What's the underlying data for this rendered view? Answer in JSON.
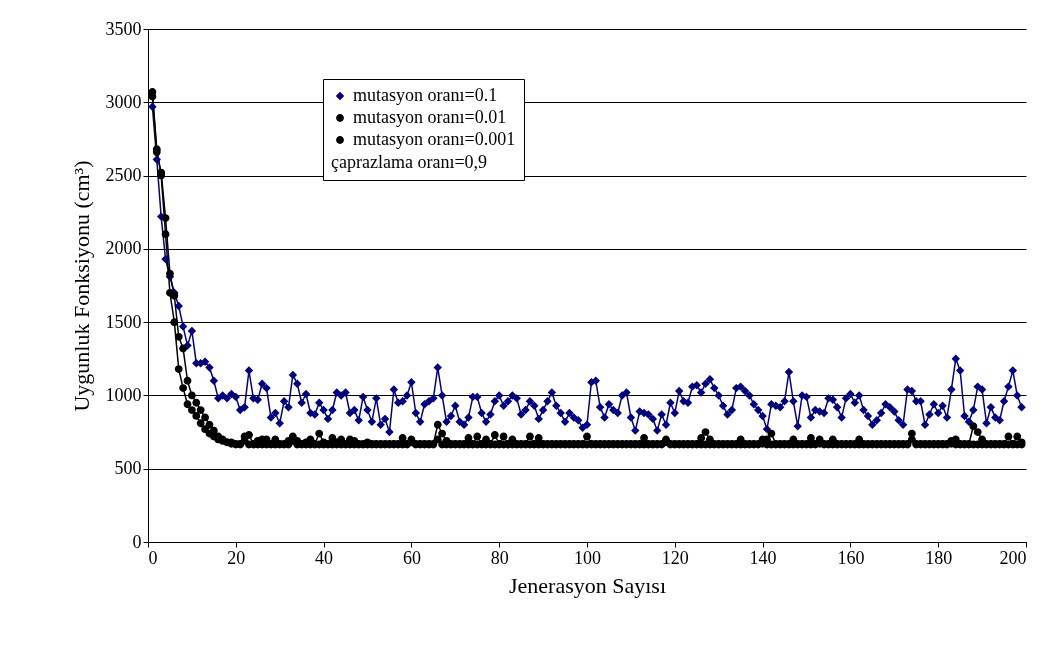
{
  "chart_data": {
    "type": "line",
    "xlabel": "Jenerasyon Sayısı",
    "ylabel": "Uygunluk Fonksiyonu (cm³)",
    "legend_title": "çaprazlama oranı=0,9",
    "x": [
      1,
      2,
      3,
      4,
      5,
      6,
      7,
      8,
      9,
      10,
      11,
      12,
      13,
      14,
      15,
      16,
      17,
      18,
      19,
      20,
      21,
      22,
      23,
      24,
      25,
      26,
      27,
      28,
      29,
      30,
      31,
      32,
      33,
      34,
      35,
      36,
      37,
      38,
      39,
      40,
      41,
      42,
      43,
      44,
      45,
      46,
      47,
      48,
      49,
      50,
      51,
      52,
      53,
      54,
      55,
      56,
      57,
      58,
      59,
      60,
      61,
      62,
      63,
      64,
      65,
      66,
      67,
      68,
      69,
      70,
      71,
      72,
      73,
      74,
      75,
      76,
      77,
      78,
      79,
      80,
      81,
      82,
      83,
      84,
      85,
      86,
      87,
      88,
      89,
      90,
      91,
      92,
      93,
      94,
      95,
      96,
      97,
      98,
      99,
      100,
      101,
      102,
      103,
      104,
      105,
      106,
      107,
      108,
      109,
      110,
      111,
      112,
      113,
      114,
      115,
      116,
      117,
      118,
      119,
      120,
      121,
      122,
      123,
      124,
      125,
      126,
      127,
      128,
      129,
      130,
      131,
      132,
      133,
      134,
      135,
      136,
      137,
      138,
      139,
      140,
      141,
      142,
      143,
      144,
      145,
      146,
      147,
      148,
      149,
      150,
      151,
      152,
      153,
      154,
      155,
      156,
      157,
      158,
      159,
      160,
      161,
      162,
      163,
      164,
      165,
      166,
      167,
      168,
      169,
      170,
      171,
      172,
      173,
      174,
      175,
      176,
      177,
      178,
      179,
      180,
      181,
      182,
      183,
      184,
      185,
      186,
      187,
      188,
      189,
      190,
      191,
      192,
      193,
      194,
      195,
      196,
      197,
      198,
      199
    ],
    "series": [
      {
        "name": "mutasyon oranı=0.1",
        "color": "#000080",
        "marker": "diamond",
        "values": [
          2970,
          2610,
          2220,
          1930,
          1810,
          1700,
          1610,
          1470,
          1340,
          1440,
          1220,
          1220,
          1230,
          1190,
          1100,
          980,
          1000,
          980,
          1010,
          990,
          900,
          920,
          1170,
          980,
          970,
          1080,
          1050,
          850,
          880,
          810,
          960,
          920,
          1140,
          1080,
          950,
          1010,
          880,
          870,
          950,
          900,
          840,
          900,
          1020,
          1000,
          1020,
          880,
          900,
          830,
          990,
          900,
          820,
          980,
          800,
          840,
          750,
          1040,
          950,
          960,
          1000,
          1090,
          880,
          820,
          940,
          960,
          980,
          1190,
          1000,
          820,
          860,
          930,
          820,
          800,
          850,
          990,
          990,
          880,
          820,
          870,
          960,
          1000,
          930,
          960,
          1000,
          980,
          870,
          900,
          960,
          930,
          840,
          900,
          960,
          1020,
          930,
          880,
          820,
          880,
          850,
          830,
          780,
          800,
          1090,
          1100,
          920,
          850,
          940,
          900,
          880,
          1000,
          1020,
          850,
          760,
          890,
          880,
          870,
          840,
          760,
          870,
          800,
          950,
          880,
          1030,
          960,
          950,
          1060,
          1070,
          1020,
          1080,
          1110,
          1050,
          1000,
          930,
          870,
          900,
          1050,
          1060,
          1030,
          1000,
          940,
          900,
          860,
          770,
          940,
          930,
          920,
          960,
          1160,
          960,
          790,
          1000,
          990,
          850,
          900,
          890,
          880,
          980,
          970,
          920,
          850,
          980,
          1010,
          950,
          1000,
          900,
          860,
          800,
          830,
          880,
          940,
          920,
          890,
          830,
          800,
          1040,
          1030,
          960,
          960,
          800,
          870,
          940,
          880,
          930,
          850,
          1040,
          1250,
          1170,
          860,
          820,
          900,
          1060,
          1040,
          810,
          920,
          850,
          830,
          960,
          1060,
          1170,
          1000,
          920
        ]
      },
      {
        "name": "mutasyon oranı=0.01",
        "color": "#000000",
        "marker": "circle",
        "values": [
          3070,
          2680,
          2500,
          2100,
          1700,
          1500,
          1180,
          1050,
          940,
          900,
          860,
          810,
          770,
          740,
          720,
          700,
          690,
          680,
          680,
          670,
          670,
          720,
          730,
          670,
          690,
          700,
          700,
          670,
          700,
          670,
          670,
          690,
          720,
          690,
          670,
          680,
          700,
          670,
          740,
          680,
          670,
          710,
          680,
          700,
          670,
          700,
          690,
          670,
          670,
          680,
          670,
          670,
          670,
          670,
          670,
          670,
          670,
          710,
          670,
          700,
          670,
          670,
          670,
          670,
          670,
          800,
          740,
          690,
          670,
          670,
          670,
          670,
          710,
          670,
          720,
          670,
          700,
          670,
          730,
          670,
          720,
          670,
          700,
          670,
          670,
          670,
          720,
          670,
          710,
          670,
          670,
          670,
          670,
          670,
          670,
          670,
          670,
          670,
          670,
          720,
          670,
          670,
          670,
          670,
          670,
          670,
          670,
          670,
          670,
          670,
          670,
          670,
          710,
          670,
          670,
          670,
          670,
          700,
          670,
          670,
          670,
          670,
          670,
          670,
          670,
          710,
          750,
          700,
          670,
          670,
          670,
          670,
          670,
          670,
          700,
          670,
          670,
          670,
          670,
          670,
          700,
          740,
          670,
          670,
          670,
          670,
          700,
          670,
          670,
          670,
          710,
          670,
          670,
          670,
          670,
          700,
          670,
          670,
          670,
          670,
          670,
          700,
          670,
          670,
          670,
          670,
          670,
          670,
          670,
          670,
          670,
          670,
          670,
          740,
          670,
          670,
          670,
          670,
          670,
          670,
          670,
          670,
          670,
          700,
          670,
          670,
          670,
          790,
          750,
          700,
          670,
          670,
          670,
          670,
          670,
          720,
          670,
          720,
          680
        ]
      },
      {
        "name": "mutasyon oranı=0.001",
        "color": "#000000",
        "marker": "circle",
        "values": [
          3040,
          2660,
          2520,
          2210,
          1830,
          1680,
          1400,
          1320,
          1100,
          1000,
          950,
          900,
          850,
          800,
          760,
          720,
          700,
          680,
          670,
          665,
          665,
          690,
          665,
          665,
          665,
          665,
          665,
          665,
          665,
          665,
          665,
          665,
          690,
          665,
          665,
          665,
          665,
          665,
          665,
          665,
          665,
          665,
          665,
          665,
          665,
          665,
          665,
          665,
          665,
          665,
          665,
          665,
          665,
          665,
          665,
          665,
          665,
          665,
          665,
          680,
          665,
          665,
          665,
          665,
          665,
          700,
          665,
          665,
          665,
          665,
          665,
          665,
          665,
          665,
          665,
          665,
          665,
          665,
          665,
          665,
          665,
          665,
          665,
          665,
          665,
          665,
          665,
          665,
          665,
          665,
          665,
          665,
          665,
          665,
          665,
          665,
          665,
          665,
          665,
          665,
          665,
          665,
          665,
          665,
          665,
          665,
          665,
          665,
          665,
          665,
          665,
          665,
          665,
          665,
          665,
          665,
          665,
          680,
          665,
          665,
          665,
          665,
          665,
          665,
          665,
          665,
          665,
          665,
          665,
          665,
          665,
          665,
          665,
          665,
          665,
          665,
          665,
          665,
          665,
          700,
          665,
          665,
          665,
          665,
          665,
          665,
          665,
          665,
          665,
          665,
          665,
          665,
          700,
          665,
          665,
          665,
          665,
          665,
          665,
          665,
          665,
          665,
          665,
          665,
          665,
          665,
          665,
          665,
          665,
          665,
          665,
          665,
          665,
          700,
          665,
          665,
          665,
          665,
          665,
          665,
          665,
          665,
          690,
          665,
          665,
          665,
          665,
          665,
          665,
          665,
          665,
          665,
          665,
          665,
          665,
          665,
          665,
          665,
          665
        ]
      }
    ],
    "xlim": [
      0,
      200
    ],
    "xticks": [
      0,
      20,
      40,
      60,
      80,
      100,
      120,
      140,
      160,
      180,
      200
    ],
    "ylim": [
      0,
      3500
    ],
    "yticks": [
      0,
      500,
      1000,
      1500,
      2000,
      2500,
      3000,
      3500
    ],
    "grid": "y",
    "legend": "top",
    "line_style": "solid"
  }
}
